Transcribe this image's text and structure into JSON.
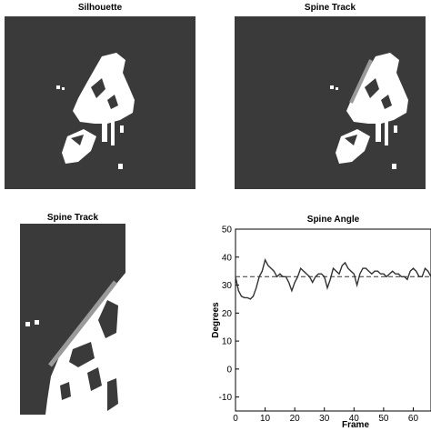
{
  "panels": {
    "silhouette_title": "Silhouette",
    "spine_track_title": "Spine Track",
    "spine_track_zoom_title": "Spine Track"
  },
  "colors": {
    "background": "#3a3a3a",
    "silhouette": "#ffffff",
    "spine_line": "#9a9a9a",
    "series_line": "#333333"
  },
  "chart_data": {
    "type": "line",
    "title": "Spine Angle",
    "xlabel": "Frame",
    "ylabel": "Degrees",
    "xlim": [
      0,
      66
    ],
    "ylim": [
      -15,
      50
    ],
    "xticks": [
      0,
      10,
      20,
      30,
      40,
      50,
      60
    ],
    "yticks": [
      -10,
      0,
      10,
      20,
      30,
      40,
      50
    ],
    "grid": false,
    "series": [
      {
        "x": [
          0,
          1,
          2,
          3,
          4,
          5,
          6,
          7,
          8,
          9,
          10,
          11,
          12,
          13,
          14,
          15,
          16,
          17,
          18,
          19,
          20,
          21,
          22,
          23,
          24,
          25,
          26,
          27,
          28,
          29,
          30,
          31,
          32,
          33,
          34,
          35,
          36,
          37,
          38,
          39,
          40,
          41,
          42,
          43,
          44,
          45,
          46,
          47,
          48,
          49,
          50,
          51,
          52,
          53,
          54,
          55,
          56,
          57,
          58,
          59,
          60,
          61,
          62,
          63,
          64,
          65,
          66
        ],
        "values": [
          33,
          28,
          26,
          25.5,
          25.5,
          25,
          26,
          29,
          33,
          35,
          39,
          37,
          36,
          35,
          33,
          34,
          33,
          33,
          31,
          28,
          31,
          33,
          36,
          35,
          34,
          33,
          31,
          33,
          34,
          34,
          33,
          29,
          32,
          36,
          35,
          34,
          37,
          38,
          36,
          35,
          34,
          30,
          34,
          36,
          36,
          35,
          34,
          35,
          35,
          34,
          34,
          33,
          34,
          35,
          34,
          34,
          33,
          33,
          32,
          35,
          36,
          35,
          33,
          33,
          36,
          35,
          33
        ]
      }
    ],
    "reference_line": {
      "value": 33,
      "style": "dashed"
    }
  }
}
